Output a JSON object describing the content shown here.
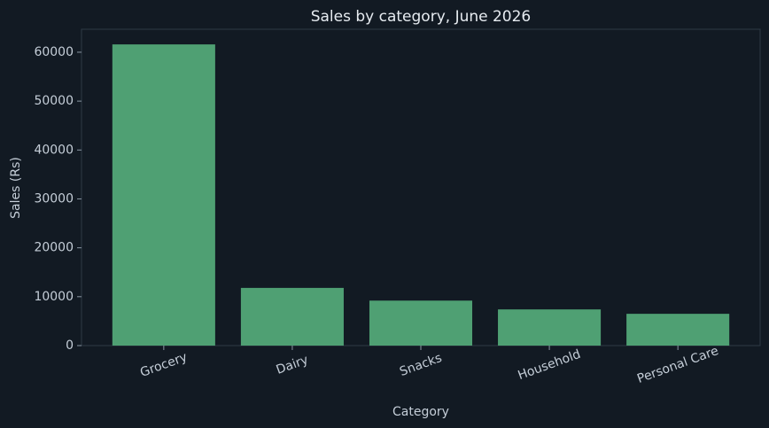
{
  "chart_data": {
    "type": "bar",
    "title": "Sales by category, June 2026",
    "x_label": "Category",
    "y_label": "Sales (Rs)",
    "categories": [
      "Grocery",
      "Dairy",
      "Snacks",
      "Household",
      "Personal Care"
    ],
    "values": [
      61600,
      11800,
      9200,
      7400,
      6500
    ],
    "color": "#4fa073",
    "ylim": [
      0,
      64700
    ],
    "yticks": [
      0,
      10000,
      20000,
      30000,
      40000,
      50000,
      60000
    ],
    "grid": false
  }
}
